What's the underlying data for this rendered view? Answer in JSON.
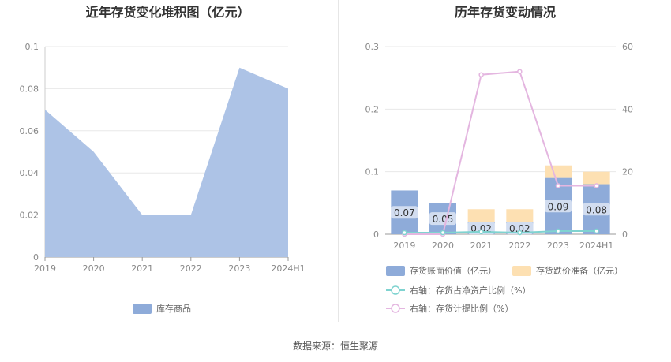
{
  "left_title": "近年存货变化堆积图（亿元）",
  "right_title": "历年存货变动情况",
  "source": "数据来源：恒生聚源",
  "colors": {
    "area": "#adc3e6",
    "bar_book": "#8eabd9",
    "bar_reserve": "#fde0b2",
    "line_ratio_net": "#7fd3d0",
    "line_provision": "#e4b6e0"
  },
  "chart_data": [
    {
      "type": "area",
      "title": "近年存货变化堆积图（亿元）",
      "categories": [
        "2019",
        "2020",
        "2021",
        "2022",
        "2023",
        "2024H1"
      ],
      "series": [
        {
          "name": "库存商品",
          "values": [
            0.07,
            0.05,
            0.02,
            0.02,
            0.09,
            0.08
          ]
        }
      ],
      "ylim": [
        0,
        0.1
      ],
      "yticks": [
        "0",
        "0.02",
        "0.04",
        "0.06",
        "0.08",
        "0.1"
      ],
      "legend_position": "bottom",
      "grid": true
    },
    {
      "type": "bar",
      "title": "历年存货变动情况",
      "categories": [
        "2019",
        "2020",
        "2021",
        "2022",
        "2023",
        "2024H1"
      ],
      "series": [
        {
          "name": "存货账面价值（亿元）",
          "values": [
            0.07,
            0.05,
            0.02,
            0.02,
            0.09,
            0.08
          ],
          "labels": [
            "0.07",
            "0.05",
            "0.02",
            "0.02",
            "0.09",
            "0.08"
          ]
        },
        {
          "name": "存货跌价准备（亿元）",
          "values": [
            0,
            0,
            0.02,
            0.02,
            0.02,
            0.02
          ]
        },
        {
          "name": "右轴：存货占净资产比例（%）",
          "axis": "right",
          "type": "line",
          "values": [
            0.5,
            0.5,
            0.8,
            0.5,
            1.0,
            1.0
          ]
        },
        {
          "name": "右轴：存货计提比例（%）",
          "axis": "right",
          "type": "line",
          "values": [
            0,
            0,
            51,
            52,
            15.5,
            15.5
          ]
        }
      ],
      "ylim": [
        0,
        0.3
      ],
      "yticks": [
        "0",
        "0.1",
        "0.2",
        "0.3"
      ],
      "y2lim": [
        0,
        60
      ],
      "y2ticks": [
        "0",
        "20",
        "40",
        "60"
      ],
      "legend_position": "bottom",
      "grid": true
    }
  ]
}
